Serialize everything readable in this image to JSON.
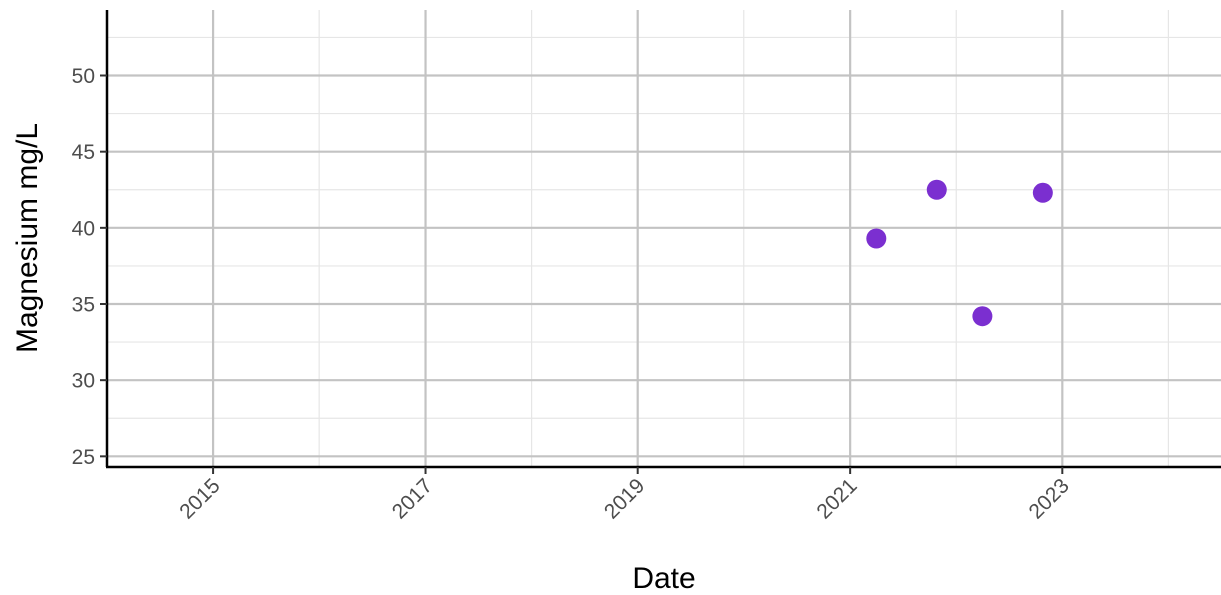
{
  "chart_data": {
    "type": "scatter",
    "title": "",
    "xlabel": "Date",
    "ylabel": "Magnesium mg/L",
    "x_scale": "date",
    "xlim": [
      "2014-01-01",
      "2024-06-30"
    ],
    "ylim": [
      24.3,
      54.3
    ],
    "x_ticks": [
      "2015",
      "2017",
      "2019",
      "2021",
      "2023"
    ],
    "x_minor_ticks": [
      "2014",
      "2016",
      "2018",
      "2020",
      "2022",
      "2024"
    ],
    "y_ticks": [
      25,
      30,
      35,
      40,
      45,
      50
    ],
    "grid": true,
    "legend": "none",
    "point_color": "#7b2fd0",
    "points": [
      {
        "x": "2021-04-01",
        "y": 39.3
      },
      {
        "x": "2021-10-26",
        "y": 42.5
      },
      {
        "x": "2022-04-01",
        "y": 34.2
      },
      {
        "x": "2022-10-26",
        "y": 42.3
      }
    ]
  }
}
